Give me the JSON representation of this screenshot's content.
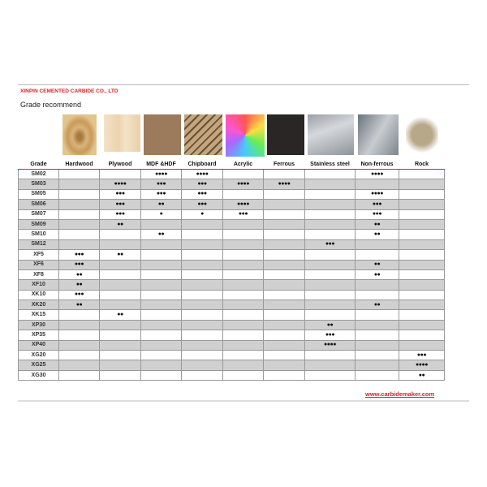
{
  "company": "XINPIN CEMENTED CARBIDE CO., LTD",
  "title": "Grade recommend",
  "columns": [
    "Grade",
    "Hardwood",
    "Plywood",
    "MDF &HDF",
    "Chipboard",
    "Acrylic",
    "Ferrous",
    "Stainless steel",
    "Non-ferrous",
    "Rock"
  ],
  "rows": [
    [
      "SM02",
      "",
      "",
      "●●●●",
      "●●●●",
      "",
      "",
      "",
      "●●●●",
      ""
    ],
    [
      "SM03",
      "",
      "●●●●",
      "●●●",
      "●●●",
      "●●●●",
      "●●●●",
      "",
      "",
      ""
    ],
    [
      "SM05",
      "",
      "●●●",
      "●●●",
      "●●●",
      "",
      "",
      "",
      "●●●●",
      ""
    ],
    [
      "SM06",
      "",
      "●●●",
      "●●",
      "●●●",
      "●●●●",
      "",
      "",
      "●●●",
      ""
    ],
    [
      "SM07",
      "",
      "●●●",
      "●",
      "●",
      "●●●",
      "",
      "",
      "●●●",
      ""
    ],
    [
      "SM09",
      "",
      "●●",
      "",
      "",
      "",
      "",
      "",
      "●●",
      ""
    ],
    [
      "SM10",
      "",
      "",
      "●●",
      "",
      "",
      "",
      "",
      "●●",
      ""
    ],
    [
      "SM12",
      "",
      "",
      "",
      "",
      "",
      "",
      "●●●",
      "",
      ""
    ],
    [
      "XF5",
      "●●●",
      "●●",
      "",
      "",
      "",
      "",
      "",
      "",
      ""
    ],
    [
      "XF6",
      "●●●",
      "",
      "",
      "",
      "",
      "",
      "",
      "●●",
      ""
    ],
    [
      "XF8",
      "●●",
      "",
      "",
      "",
      "",
      "",
      "",
      "●●",
      ""
    ],
    [
      "XF10",
      "●●",
      "",
      "",
      "",
      "",
      "",
      "",
      "",
      ""
    ],
    [
      "XK10",
      "●●●",
      "",
      "",
      "",
      "",
      "",
      "",
      "",
      ""
    ],
    [
      "XK20",
      "●●",
      "",
      "",
      "",
      "",
      "",
      "",
      "●●",
      ""
    ],
    [
      "XK15",
      "",
      "●●",
      "",
      "",
      "",
      "",
      "",
      "",
      ""
    ],
    [
      "XP30",
      "",
      "",
      "",
      "",
      "",
      "",
      "●●",
      "",
      ""
    ],
    [
      "XP35",
      "",
      "",
      "",
      "",
      "",
      "",
      "●●●",
      "",
      ""
    ],
    [
      "XP40",
      "",
      "",
      "",
      "",
      "",
      "",
      "●●●●",
      "",
      ""
    ],
    [
      "XG20",
      "",
      "",
      "",
      "",
      "",
      "",
      "",
      "",
      "●●●"
    ],
    [
      "XG25",
      "",
      "",
      "",
      "",
      "",
      "",
      "",
      "",
      "●●●●"
    ],
    [
      "XG30",
      "",
      "",
      "",
      "",
      "",
      "",
      "",
      "",
      "●●"
    ]
  ],
  "website": "www.carbidemaker.com",
  "colors": {
    "accent": "#e0202a",
    "shade": "#d0d0d0"
  }
}
